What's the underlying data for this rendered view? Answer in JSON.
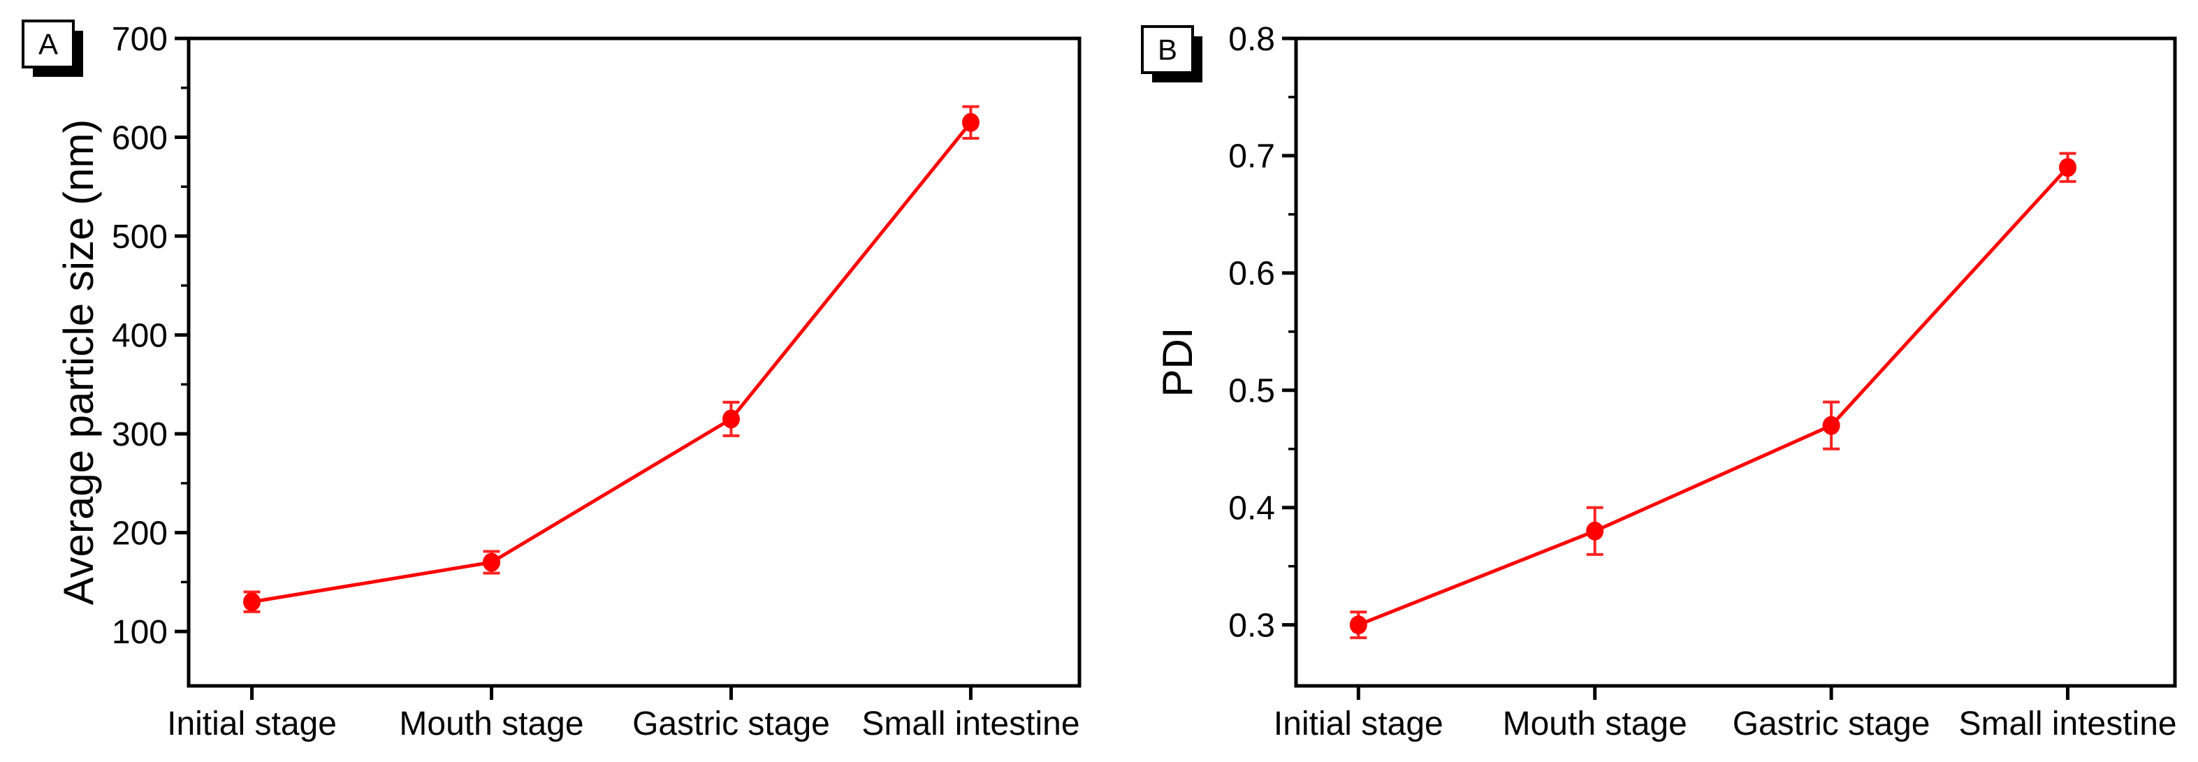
{
  "figure": {
    "background": "#ffffff",
    "axis_color": "#000000",
    "accent_red": "#ff0000",
    "error_bar_red": "#ff2222"
  },
  "chart_data": [
    {
      "type": "line",
      "panel_label": "A",
      "title": "",
      "ylabel": "Average particle size (nm)",
      "xlabel": "",
      "categories": [
        "Initial stage",
        "Mouth stage",
        "Gastric stage",
        "Small intestine"
      ],
      "series": [
        {
          "name": "Average particle size (nm)",
          "color": "#ff0000",
          "marker": "circle",
          "values": [
            130,
            170,
            315,
            615
          ],
          "errors": [
            10,
            11,
            17,
            16
          ]
        }
      ],
      "ylim": [
        45,
        700
      ],
      "yticks": [
        100,
        200,
        300,
        400,
        500,
        600,
        700
      ],
      "ytick_labels": [
        "100",
        "200",
        "300",
        "400",
        "500",
        "600",
        "700"
      ],
      "minor_tick_step": 50,
      "grid": false,
      "legend": null
    },
    {
      "type": "line",
      "panel_label": "B",
      "title": "",
      "ylabel": "PDI",
      "xlabel": "",
      "categories": [
        "Initial stage",
        "Mouth stage",
        "Gastric stage",
        "Small intestine"
      ],
      "series": [
        {
          "name": "PDI",
          "color": "#ff0000",
          "marker": "circle",
          "values": [
            0.3,
            0.38,
            0.47,
            0.69
          ],
          "errors": [
            0.011,
            0.02,
            0.02,
            0.012
          ]
        }
      ],
      "ylim": [
        0.248,
        0.8
      ],
      "yticks": [
        0.3,
        0.4,
        0.5,
        0.6,
        0.7,
        0.8
      ],
      "ytick_labels": [
        "0.3",
        "0.4",
        "0.5",
        "0.6",
        "0.7",
        "0.8"
      ],
      "minor_tick_step": 0.05,
      "grid": false,
      "legend": null
    }
  ]
}
